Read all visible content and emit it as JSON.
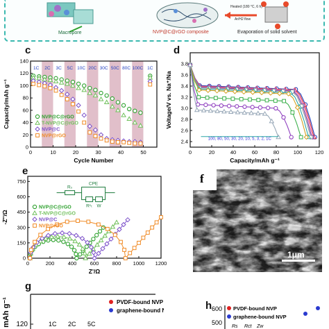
{
  "banner": {
    "macropore": "Macropore",
    "composite": "NVP@C@rGO composite",
    "evaporation": "Evaporation of solid solvent",
    "arrow_text_1": "Heated (180 °C, 6 h)",
    "arrow_text_2": "Ar/H2 flow"
  },
  "colors": {
    "nvp_c_rgo": "#2ca02c",
    "t_nvp_c_rgo": "#6fbf5a",
    "nvp_c": "#7b4fc9",
    "nvp_rgo": "#f08a24",
    "rate_band": "#c98a9e",
    "banner_border": "#3bb9b0"
  },
  "panel_labels": {
    "c": "c",
    "d": "d",
    "e": "e",
    "f": "f",
    "g": "g",
    "h": "h"
  },
  "chart_data": [
    {
      "id": "c",
      "type": "scatter",
      "xlabel": "Cycle Number",
      "ylabel": "Capacity/mAh g⁻¹",
      "xlim": [
        0,
        56
      ],
      "ylim": [
        0,
        140
      ],
      "xticks": [
        0,
        10,
        20,
        30,
        40,
        50
      ],
      "yticks": [
        0,
        20,
        40,
        60,
        80,
        100,
        120,
        140
      ],
      "rates": [
        "1C",
        "2C",
        "3C",
        "5C",
        "10C",
        "20C",
        "30C",
        "50C",
        "80C",
        "100C",
        "1C"
      ],
      "legend": [
        "NVP@C@rGO",
        "T-NVP@C@rGO",
        "NVP@C",
        "NVP@rGO"
      ],
      "legend_position": "lower-left",
      "series": [
        {
          "name": "NVP@C@rGO",
          "color": "#2ca02c",
          "values": [
            116,
            115,
            114,
            113,
            112,
            110,
            108,
            106,
            103,
            100,
            96,
            93,
            88,
            84,
            79,
            73,
            68,
            62,
            59,
            56,
            116
          ]
        },
        {
          "name": "T-NVP@C@rGO",
          "color": "#6fbf5a",
          "values": [
            113,
            112,
            110,
            109,
            107,
            105,
            103,
            100,
            96,
            93,
            88,
            84,
            78,
            73,
            66,
            60,
            52,
            46,
            40,
            35,
            113
          ]
        },
        {
          "name": "NVP@C",
          "color": "#7b4fc9",
          "values": [
            108,
            106,
            104,
            101,
            97,
            92,
            86,
            78,
            68,
            52,
            34,
            28,
            20,
            14,
            12,
            11,
            10,
            9,
            9,
            8,
            107
          ]
        },
        {
          "name": "NVP@rGO",
          "color": "#f08a24",
          "values": [
            103,
            101,
            99,
            96,
            92,
            85,
            78,
            70,
            58,
            40,
            24,
            18,
            14,
            11,
            9,
            8,
            8,
            7,
            6,
            6,
            102
          ]
        }
      ]
    },
    {
      "id": "d",
      "type": "line",
      "xlabel": "Capacity/mAh g⁻¹",
      "ylabel": "Voltage/V vs. Na⁺/Na",
      "xlim": [
        0,
        120
      ],
      "ylim": [
        2.3,
        4.0
      ],
      "xticks": [
        0,
        20,
        40,
        60,
        80,
        100,
        120
      ],
      "yticks": [
        2.4,
        2.6,
        2.8,
        3.0,
        3.2,
        3.4,
        3.6,
        3.8
      ],
      "rate_annotation": "100, 80, 50, 30, 20, 10, 5, 3, 2, 1C",
      "series": [
        {
          "name": "1C",
          "color": "#1f3fbf",
          "cap": 116,
          "plateau": 3.36
        },
        {
          "name": "2C",
          "color": "#e23a3a",
          "cap": 115,
          "plateau": 3.35
        },
        {
          "name": "3C",
          "color": "#f07ac0",
          "cap": 114,
          "plateau": 3.34
        },
        {
          "name": "5C",
          "color": "#6b3fa0",
          "cap": 113,
          "plateau": 3.33
        },
        {
          "name": "10C",
          "color": "#a0a0a0",
          "cap": 112,
          "plateau": 3.32
        },
        {
          "name": "20C",
          "color": "#2aa6a6",
          "cap": 110,
          "plateau": 3.3
        },
        {
          "name": "30C",
          "color": "#d4a020",
          "cap": 108,
          "plateau": 3.28
        },
        {
          "name": "50C",
          "color": "#3cb04c",
          "cap": 103,
          "plateau": 3.15
        },
        {
          "name": "80C",
          "color": "#8f3fbf",
          "cap": 94,
          "plateau": 3.02
        },
        {
          "name": "100C",
          "color": "#98a8b8",
          "cap": 82,
          "plateau": 2.92
        }
      ]
    },
    {
      "id": "e",
      "type": "scatter",
      "xlabel": "Z'/Ω",
      "ylabel": "-Z''/Ω",
      "xlim": [
        0,
        1200
      ],
      "ylim": [
        0,
        800
      ],
      "xticks": [
        0,
        200,
        400,
        600,
        800,
        1000,
        1200
      ],
      "yticks": [
        0,
        150,
        300,
        450,
        600,
        750
      ],
      "legend": [
        "NVP@C@rGO",
        "T-NVP@C@rGO",
        "NVP@C",
        "NVP@rGO"
      ],
      "circuit_labels": {
        "rs": "Rₛ",
        "cpe": "CPE",
        "rct": "Rᶜₜ",
        "w": "W"
      },
      "series": [
        {
          "name": "NVP@C@rGO",
          "color": "#2ca02c",
          "rct": 440,
          "tail": 120
        },
        {
          "name": "T-NVP@C@rGO",
          "color": "#6fbf5a",
          "rct": 520,
          "tail": 140
        },
        {
          "name": "NVP@C",
          "color": "#7b4fc9",
          "rct": 600,
          "tail": 150
        },
        {
          "name": "NVP@rGO",
          "color": "#f08a24",
          "rct": 880,
          "tail": 160
        }
      ]
    },
    {
      "id": "g",
      "type": "scatter",
      "ylabel": "mAh g⁻¹",
      "yticks": [
        120
      ],
      "rates": [
        "1C",
        "2C",
        "5C"
      ],
      "legend": [
        "PVDF-bound NVP",
        "graphene-bound NVP"
      ]
    },
    {
      "id": "h",
      "type": "scatter",
      "yticks": [
        600,
        500
      ],
      "legend": [
        "PVDF-bound NVP",
        "graphene-bound NVP"
      ],
      "circuit_labels": [
        "Rs",
        "Rct",
        "Zw"
      ]
    }
  ],
  "sem": {
    "scale_bar": "1μm"
  }
}
